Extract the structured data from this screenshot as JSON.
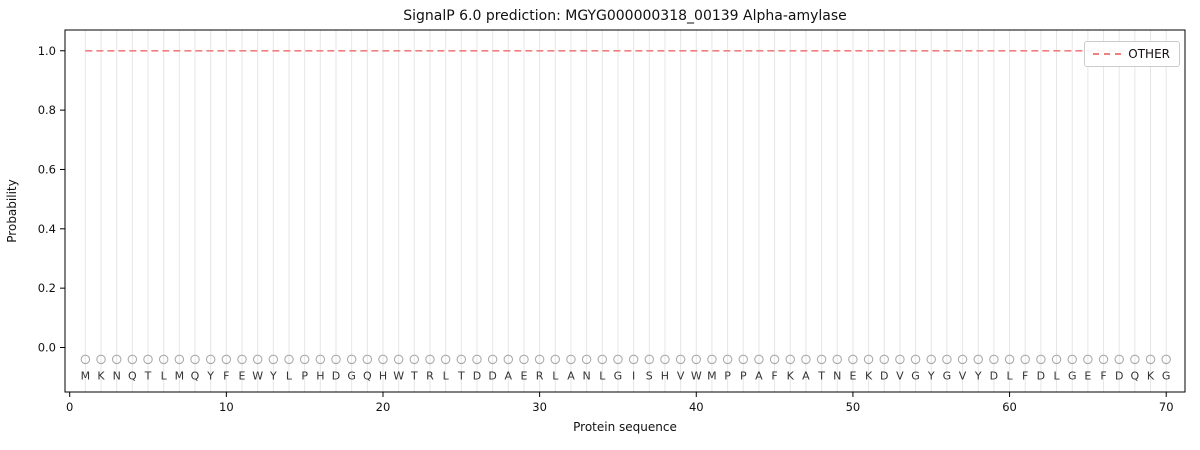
{
  "chart_data": {
    "type": "line",
    "title": "SignalP 6.0 prediction: MGYG000000318_00139 Alpha-amylase",
    "xlabel": "Protein sequence",
    "ylabel": "Probability",
    "xlim": [
      -0.3,
      71.2
    ],
    "ylim": [
      -0.15,
      1.07
    ],
    "xticks": [
      0,
      10,
      20,
      30,
      40,
      50,
      60,
      70
    ],
    "yticks": [
      0.0,
      0.2,
      0.4,
      0.6,
      0.8,
      1.0
    ],
    "grid": "vertical-line-per-residue",
    "legend_position": "upper right",
    "residues": [
      "M",
      "K",
      "N",
      "Q",
      "T",
      "L",
      "M",
      "Q",
      "Y",
      "F",
      "E",
      "W",
      "Y",
      "L",
      "P",
      "H",
      "D",
      "G",
      "Q",
      "H",
      "W",
      "T",
      "R",
      "L",
      "T",
      "D",
      "D",
      "A",
      "E",
      "R",
      "L",
      "A",
      "N",
      "L",
      "G",
      "I",
      "S",
      "H",
      "V",
      "W",
      "M",
      "P",
      "P",
      "A",
      "F",
      "K",
      "A",
      "T",
      "N",
      "E",
      "K",
      "D",
      "V",
      "G",
      "Y",
      "G",
      "V",
      "Y",
      "D",
      "L",
      "F",
      "D",
      "L",
      "G",
      "E",
      "F",
      "D",
      "Q",
      "K",
      "G"
    ],
    "series": [
      {
        "name": "OTHER",
        "style": "dashed",
        "color": "#f08080",
        "x_start": 1,
        "x_end": 70,
        "constant_value": 1.0
      }
    ],
    "marker": {
      "shape": "open-circle",
      "color": "#aaaaaa",
      "y_value": -0.04
    },
    "residue_label_y": -0.095,
    "colors": {
      "grid": "#e6e6e6",
      "axis": "#000000",
      "tick_text": "#111111",
      "residue_text": "#333333",
      "background": "#ffffff"
    }
  }
}
